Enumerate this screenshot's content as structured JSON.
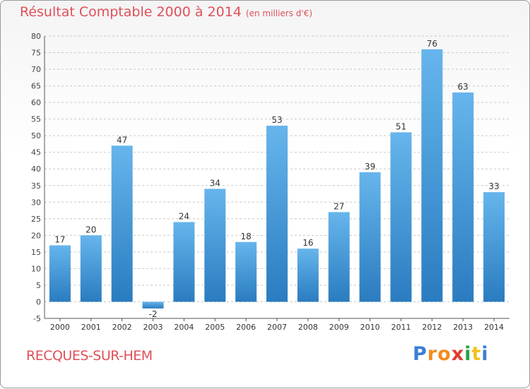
{
  "title": "Résultat Comptable 2000 à 2014",
  "subtitle": "(en milliers d'€)",
  "location": "RECQUES-SUR-HEM",
  "logo": {
    "letters": [
      "P",
      "r",
      "o",
      "x",
      "i",
      "t",
      "i"
    ],
    "colors": [
      "#3a7fd5",
      "#f28c1e",
      "#f28c1e",
      "#e23b2e",
      "#27a243",
      "#f2c21e",
      "#3a7fd5"
    ]
  },
  "colors": {
    "bar_top": "#66b5ec",
    "bar_bottom": "#2a7cc0",
    "title": "#e0505a",
    "grid": "#c8c8c8"
  },
  "chart_data": {
    "type": "bar",
    "categories": [
      "2000",
      "2001",
      "2002",
      "2003",
      "2004",
      "2005",
      "2006",
      "2007",
      "2008",
      "2009",
      "2010",
      "2011",
      "2012",
      "2013",
      "2014"
    ],
    "values": [
      17,
      20,
      47,
      -2,
      24,
      34,
      18,
      53,
      16,
      27,
      39,
      51,
      76,
      63,
      33
    ],
    "ylim": [
      -5,
      80
    ],
    "yticks": [
      -5,
      0,
      5,
      10,
      15,
      20,
      25,
      30,
      35,
      40,
      45,
      50,
      55,
      60,
      65,
      70,
      75,
      80
    ],
    "grid": "horizontal dashed",
    "data_labels": true
  }
}
